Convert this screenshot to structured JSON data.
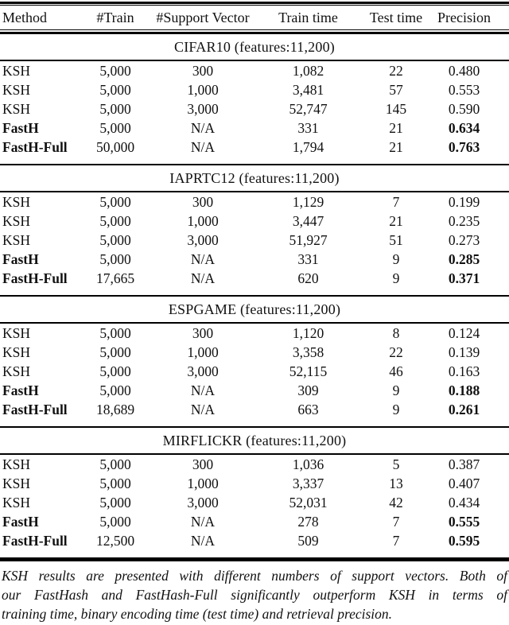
{
  "colors": {
    "text": "#111111",
    "rule": "#000000",
    "background": "#ffffff"
  },
  "table": {
    "columns": [
      {
        "key": "method",
        "label": "Method"
      },
      {
        "key": "train",
        "label": "#Train"
      },
      {
        "key": "support",
        "label": "#Support Vector"
      },
      {
        "key": "train_time",
        "label": "Train time"
      },
      {
        "key": "test_time",
        "label": "Test time"
      },
      {
        "key": "precision",
        "label": "Precision"
      }
    ],
    "sections": [
      {
        "title": "CIFAR10 (features:11,200)",
        "rows": [
          {
            "method": "KSH",
            "train": "5,000",
            "support": "300",
            "train_time": "1,082",
            "test_time": "22",
            "precision": "0.480",
            "highlight": false
          },
          {
            "method": "KSH",
            "train": "5,000",
            "support": "1,000",
            "train_time": "3,481",
            "test_time": "57",
            "precision": "0.553",
            "highlight": false
          },
          {
            "method": "KSH",
            "train": "5,000",
            "support": "3,000",
            "train_time": "52,747",
            "test_time": "145",
            "precision": "0.590",
            "highlight": false
          },
          {
            "method": "FastH",
            "train": "5,000",
            "support": "N/A",
            "train_time": "331",
            "test_time": "21",
            "precision": "0.634",
            "highlight": true
          },
          {
            "method": "FastH-Full",
            "train": "50,000",
            "support": "N/A",
            "train_time": "1,794",
            "test_time": "21",
            "precision": "0.763",
            "highlight": true
          }
        ]
      },
      {
        "title": "IAPRTC12 (features:11,200)",
        "rows": [
          {
            "method": "KSH",
            "train": "5,000",
            "support": "300",
            "train_time": "1,129",
            "test_time": "7",
            "precision": "0.199",
            "highlight": false
          },
          {
            "method": "KSH",
            "train": "5,000",
            "support": "1,000",
            "train_time": "3,447",
            "test_time": "21",
            "precision": "0.235",
            "highlight": false
          },
          {
            "method": "KSH",
            "train": "5,000",
            "support": "3,000",
            "train_time": "51,927",
            "test_time": "51",
            "precision": "0.273",
            "highlight": false
          },
          {
            "method": "FastH",
            "train": "5,000",
            "support": "N/A",
            "train_time": "331",
            "test_time": "9",
            "precision": "0.285",
            "highlight": true
          },
          {
            "method": "FastH-Full",
            "train": "17,665",
            "support": "N/A",
            "train_time": "620",
            "test_time": "9",
            "precision": "0.371",
            "highlight": true
          }
        ]
      },
      {
        "title": "ESPGAME (features:11,200)",
        "rows": [
          {
            "method": "KSH",
            "train": "5,000",
            "support": "300",
            "train_time": "1,120",
            "test_time": "8",
            "precision": "0.124",
            "highlight": false
          },
          {
            "method": "KSH",
            "train": "5,000",
            "support": "1,000",
            "train_time": "3,358",
            "test_time": "22",
            "precision": "0.139",
            "highlight": false
          },
          {
            "method": "KSH",
            "train": "5,000",
            "support": "3,000",
            "train_time": "52,115",
            "test_time": "46",
            "precision": "0.163",
            "highlight": false
          },
          {
            "method": "FastH",
            "train": "5,000",
            "support": "N/A",
            "train_time": "309",
            "test_time": "9",
            "precision": "0.188",
            "highlight": true
          },
          {
            "method": "FastH-Full",
            "train": "18,689",
            "support": "N/A",
            "train_time": "663",
            "test_time": "9",
            "precision": "0.261",
            "highlight": true
          }
        ]
      },
      {
        "title": "MIRFLICKR (features:11,200)",
        "rows": [
          {
            "method": "KSH",
            "train": "5,000",
            "support": "300",
            "train_time": "1,036",
            "test_time": "5",
            "precision": "0.387",
            "highlight": false
          },
          {
            "method": "KSH",
            "train": "5,000",
            "support": "1,000",
            "train_time": "3,337",
            "test_time": "13",
            "precision": "0.407",
            "highlight": false
          },
          {
            "method": "KSH",
            "train": "5,000",
            "support": "3,000",
            "train_time": "52,031",
            "test_time": "42",
            "precision": "0.434",
            "highlight": false
          },
          {
            "method": "FastH",
            "train": "5,000",
            "support": "N/A",
            "train_time": "278",
            "test_time": "7",
            "precision": "0.555",
            "highlight": true
          },
          {
            "method": "FastH-Full",
            "train": "12,500",
            "support": "N/A",
            "train_time": "509",
            "test_time": "7",
            "precision": "0.595",
            "highlight": true
          }
        ]
      }
    ]
  },
  "caption": {
    "lines": [
      "KSH results are presented with different numbers of support vectors. Both of",
      "our FastHash and FastHash-Full significantly outperform KSH in terms of",
      "training time, binary encoding time (test time) and retrieval precision."
    ]
  }
}
